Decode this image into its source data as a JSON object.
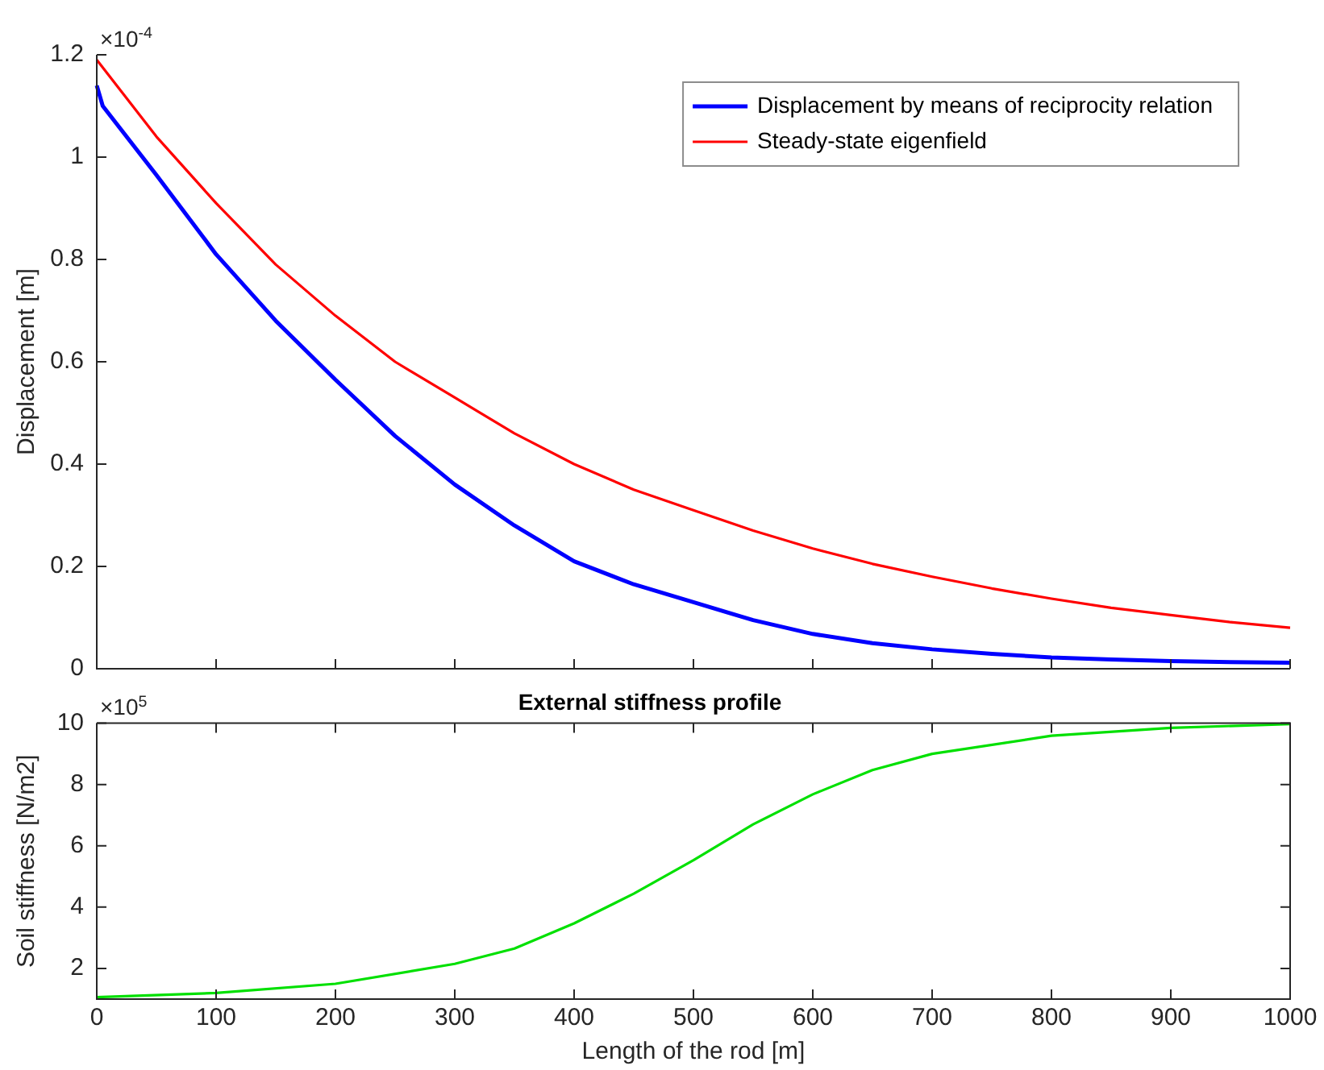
{
  "chart_data": [
    {
      "type": "line",
      "ylabel": "Displacement [m]",
      "annotations": [
        "×10$^{-4}$"
      ],
      "xlim": [
        0,
        1000
      ],
      "xticks": [
        0,
        100,
        200,
        300,
        400,
        500,
        600,
        700,
        800,
        900,
        1000
      ],
      "ylim": [
        0,
        1.2
      ],
      "yticks": [
        0,
        0.2,
        0.4,
        0.6,
        0.8,
        1,
        1.2
      ],
      "tick_labels": "y",
      "grid": false,
      "legend": "top right",
      "marker": "none",
      "line_style": "solid",
      "series": [
        {
          "name": "Displacement by means of reciprocity relation",
          "color": "#0000ff",
          "x": [
            0,
            5,
            50,
            100,
            150,
            200,
            250,
            300,
            350,
            400,
            450,
            500,
            550,
            600,
            650,
            700,
            750,
            800,
            850,
            900,
            950,
            1000
          ],
          "values": [
            1.14,
            1.1,
            0.965,
            0.81,
            0.68,
            0.565,
            0.455,
            0.36,
            0.28,
            0.21,
            0.165,
            0.13,
            0.095,
            0.068,
            0.05,
            0.038,
            0.029,
            0.022,
            0.018,
            0.015,
            0.013,
            0.012
          ]
        },
        {
          "name": "Steady-state eigenfield",
          "color": "#ff0000",
          "x": [
            0,
            50,
            100,
            150,
            200,
            250,
            300,
            350,
            400,
            450,
            500,
            550,
            600,
            650,
            700,
            750,
            800,
            850,
            900,
            950,
            1000
          ],
          "values": [
            1.19,
            1.04,
            0.91,
            0.79,
            0.69,
            0.6,
            0.53,
            0.46,
            0.4,
            0.35,
            0.31,
            0.27,
            0.235,
            0.205,
            0.18,
            0.157,
            0.137,
            0.119,
            0.105,
            0.091,
            0.08
          ]
        }
      ]
    },
    {
      "type": "line",
      "title": "External stiffness profile",
      "xlabel": "Length of the rod [m]",
      "ylabel": "Soil stiffness [N/m2]",
      "annotations": [
        "×10$^{5}$"
      ],
      "xlim": [
        0,
        1000
      ],
      "xticks": [
        0,
        100,
        200,
        300,
        400,
        500,
        600,
        700,
        800,
        900,
        1000
      ],
      "ylim": [
        1,
        10
      ],
      "yticks": [
        2,
        4,
        6,
        8,
        10
      ],
      "grid": false,
      "marker": "none",
      "line_style": "solid",
      "series": [
        {
          "color": "#00e000",
          "x": [
            0,
            100,
            200,
            300,
            350,
            400,
            450,
            500,
            550,
            600,
            650,
            700,
            800,
            900,
            1000
          ],
          "values": [
            1.06,
            1.2,
            1.5,
            2.15,
            2.65,
            3.47,
            4.44,
            5.53,
            6.7,
            7.68,
            8.47,
            9.0,
            9.59,
            9.85,
            9.97
          ]
        }
      ]
    }
  ]
}
